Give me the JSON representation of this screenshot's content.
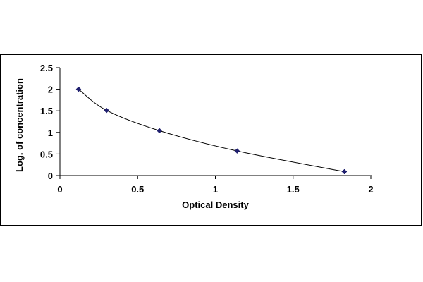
{
  "chart_data": {
    "type": "scatter",
    "title": "",
    "xlabel": "Optical Density",
    "ylabel": "Log. of concentration",
    "xlim": [
      0,
      2
    ],
    "ylim": [
      0,
      2.5
    ],
    "xticks": [
      "0",
      "0.5",
      "1",
      "1.5",
      "2"
    ],
    "yticks": [
      "0",
      "0.5",
      "1",
      "1.5",
      "2",
      "2.5"
    ],
    "grid": false,
    "legend": "none",
    "trendline": true,
    "series": [
      {
        "x": [
          0.12,
          0.3,
          0.64,
          1.14,
          1.83
        ],
        "y": [
          2.0,
          1.51,
          1.04,
          0.57,
          0.09
        ],
        "marker": "diamond",
        "color": "#1f1f6e"
      }
    ],
    "line_color": "#000000"
  }
}
